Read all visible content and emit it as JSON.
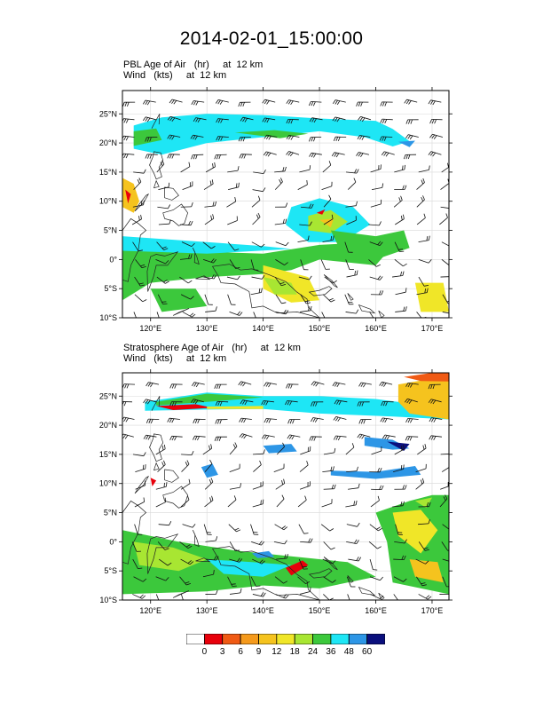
{
  "title": "2014-02-01_15:00:00",
  "panels": [
    {
      "field_line": "PBL Age of Air   (hr)     at  12 km",
      "wind_line": "Wind   (kts)     at  12 km",
      "lon_ticks": [
        "120°E",
        "130°E",
        "140°E",
        "150°E",
        "160°E",
        "170°E"
      ],
      "lat_ticks": [
        "25°N",
        "20°N",
        "15°N",
        "10°N",
        "5°N",
        "0°",
        "5°S",
        "10°S"
      ]
    },
    {
      "field_line": "Stratosphere Age of Air   (hr)     at  12 km",
      "wind_line": "Wind   (kts)     at  12 km",
      "lon_ticks": [
        "120°E",
        "130°E",
        "140°E",
        "150°E",
        "160°E",
        "170°E"
      ],
      "lat_ticks": [
        "25°N",
        "20°N",
        "15°N",
        "10°N",
        "5°N",
        "0°",
        "5°S",
        "10°S"
      ]
    }
  ],
  "colorbar": {
    "labels": [
      "0",
      "3",
      "6",
      "9",
      "12",
      "18",
      "24",
      "36",
      "48",
      "60"
    ],
    "colors": [
      "#ffffff",
      "#e8000b",
      "#f05a14",
      "#f59a1c",
      "#f5c31e",
      "#f0e628",
      "#a8e632",
      "#3cc83c",
      "#1ee6f5",
      "#2d96e6",
      "#0a0f7d"
    ]
  }
}
